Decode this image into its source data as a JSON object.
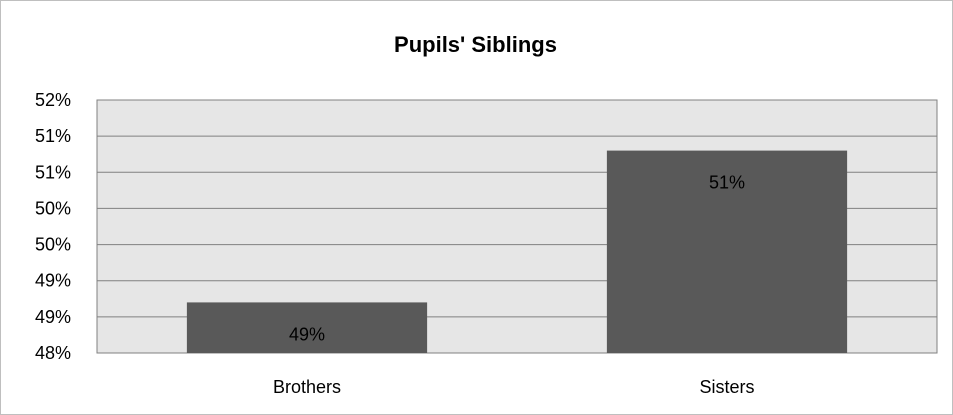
{
  "chart_data": {
    "type": "bar",
    "title": "Pupils' Siblings",
    "categories": [
      "Brothers",
      "Sisters"
    ],
    "values": [
      48.8,
      51.2
    ],
    "data_labels": [
      "49%",
      "51%"
    ],
    "y_tick_labels": [
      "52%",
      "51%",
      "51%",
      "50%",
      "50%",
      "49%",
      "49%",
      "48%"
    ],
    "ylim": [
      48,
      52
    ],
    "xlabel": "",
    "ylabel": "",
    "grid": true,
    "legend": "none",
    "colors": {
      "bar": "#595959",
      "plot_background": "#e6e6e6",
      "gridline": "#808080",
      "text": "#000000"
    }
  }
}
